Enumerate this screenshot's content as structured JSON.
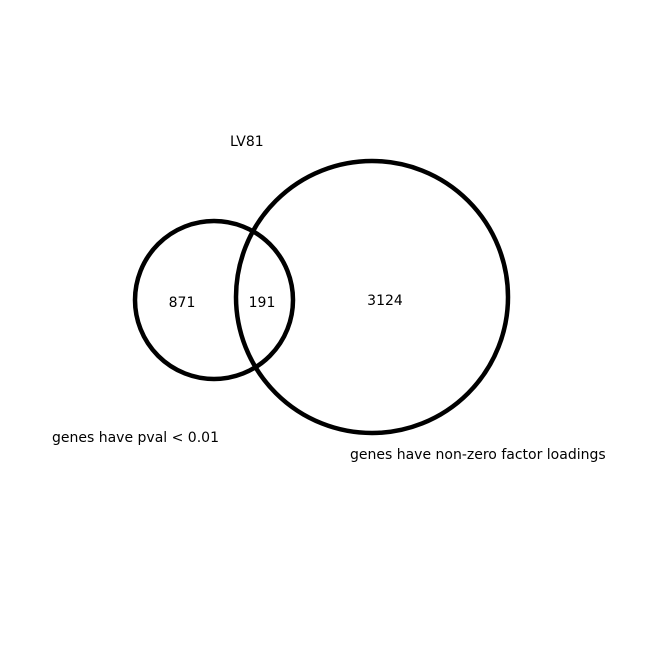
{
  "title": "LV81",
  "sets": [
    {
      "label": "genes have pval < 0.01",
      "only_count": "871"
    },
    {
      "label": "genes have non-zero factor loadings",
      "only_count": "3124"
    }
  ],
  "intersection_count": "191",
  "colors": {
    "stroke": "#000000",
    "background": "#ffffff",
    "text": "#000000"
  }
}
